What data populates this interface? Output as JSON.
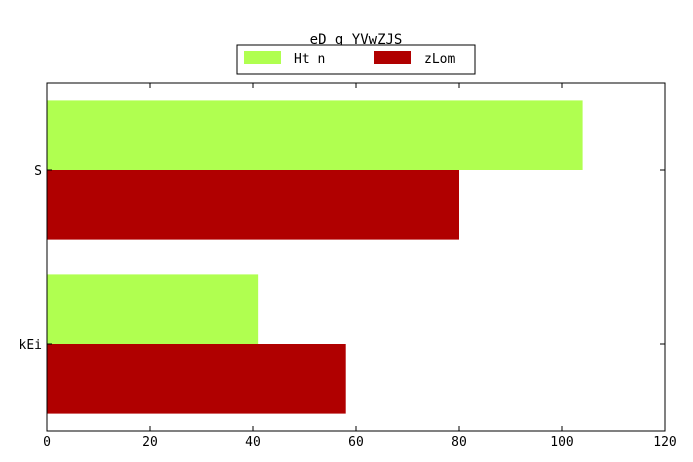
{
  "chart_data": {
    "type": "bar",
    "orientation": "horizontal",
    "title": "eD g YVwZJS",
    "xlabel": "",
    "ylabel": "",
    "categories": [
      "S",
      "kEi"
    ],
    "series": [
      {
        "name": "Ht n",
        "values": [
          104,
          41
        ],
        "color": "#b0ff50"
      },
      {
        "name": "zLom",
        "values": [
          80,
          58
        ],
        "color": "#b00000"
      }
    ],
    "xlim": [
      0,
      120
    ],
    "xticks": [
      0,
      20,
      40,
      60,
      80,
      100,
      120
    ],
    "grid": false,
    "legend_position": "top-center"
  }
}
